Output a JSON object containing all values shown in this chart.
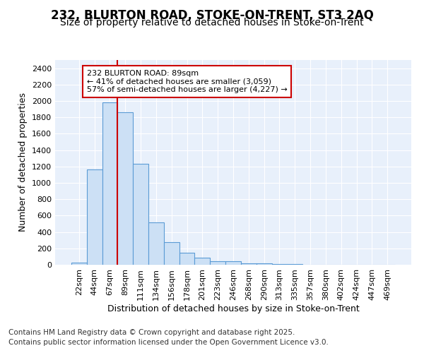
{
  "title_line1": "232, BLURTON ROAD, STOKE-ON-TRENT, ST3 2AQ",
  "title_line2": "Size of property relative to detached houses in Stoke-on-Trent",
  "xlabel": "Distribution of detached houses by size in Stoke-on-Trent",
  "ylabel": "Number of detached properties",
  "categories": [
    "22sqm",
    "44sqm",
    "67sqm",
    "89sqm",
    "111sqm",
    "134sqm",
    "156sqm",
    "178sqm",
    "201sqm",
    "223sqm",
    "246sqm",
    "268sqm",
    "290sqm",
    "313sqm",
    "335sqm",
    "357sqm",
    "380sqm",
    "402sqm",
    "424sqm",
    "447sqm",
    "469sqm"
  ],
  "values": [
    25,
    1160,
    1980,
    1860,
    1230,
    520,
    275,
    150,
    90,
    45,
    45,
    20,
    15,
    8,
    5,
    4,
    3,
    3,
    3,
    2,
    2
  ],
  "bar_color": "#cce0f5",
  "bar_edge_color": "#5b9bd5",
  "red_line_index": 3,
  "annotation_title": "232 BLURTON ROAD: 89sqm",
  "annotation_line2": "← 41% of detached houses are smaller (3,059)",
  "annotation_line3": "57% of semi-detached houses are larger (4,227) →",
  "annotation_box_color": "#ffffff",
  "annotation_box_edge": "#cc0000",
  "red_line_color": "#cc0000",
  "ylim": [
    0,
    2500
  ],
  "yticks": [
    0,
    200,
    400,
    600,
    800,
    1000,
    1200,
    1400,
    1600,
    1800,
    2000,
    2200,
    2400
  ],
  "footer_line1": "Contains HM Land Registry data © Crown copyright and database right 2025.",
  "footer_line2": "Contains public sector information licensed under the Open Government Licence v3.0.",
  "plot_bg_color": "#e8f0fb",
  "fig_bg_color": "#ffffff",
  "grid_color": "#ffffff",
  "title_fontsize": 12,
  "subtitle_fontsize": 10,
  "axis_label_fontsize": 9,
  "tick_fontsize": 8,
  "footer_fontsize": 7.5,
  "annot_fontsize": 8
}
